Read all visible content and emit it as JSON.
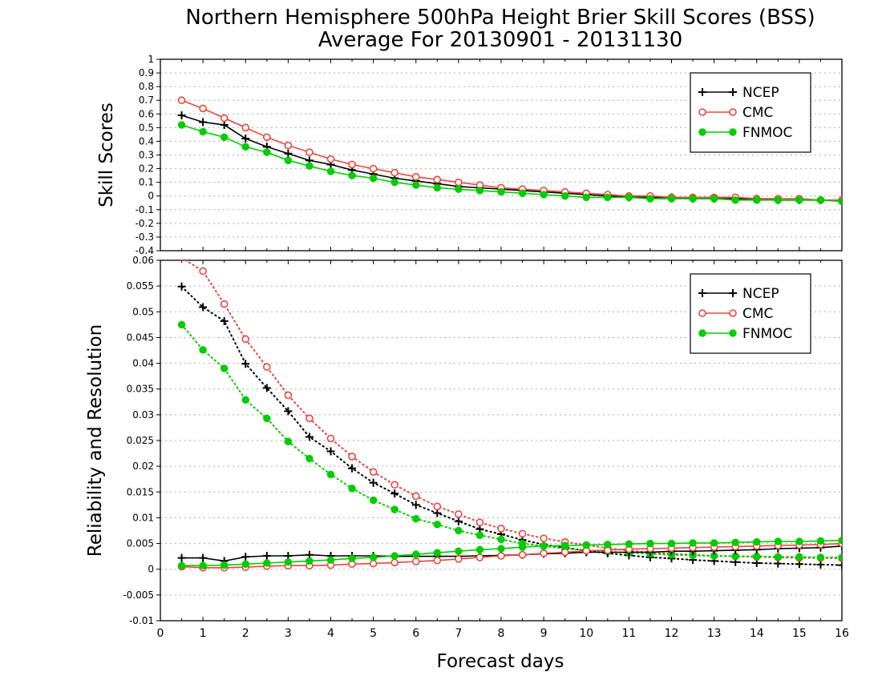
{
  "title_line1": "Northern Hemisphere 500hPa Height Brier Skill Scores (BSS)",
  "title_line2": "Average For 20130901 - 20131130",
  "xlabel": "Forecast days",
  "colors": {
    "NCEP": "#000000",
    "CMC": "#e8463c",
    "FNMOC": "#00cc00",
    "grid": "#aaaaaa"
  },
  "chart_data": [
    {
      "type": "line",
      "ylabel": "Skill Scores",
      "xlim": [
        0,
        16
      ],
      "ylim": [
        -0.4,
        1.0
      ],
      "xticks": [
        "0",
        "1",
        "2",
        "3",
        "4",
        "5",
        "6",
        "7",
        "8",
        "9",
        "10",
        "11",
        "12",
        "13",
        "14",
        "15",
        "16"
      ],
      "yticks": [
        "-0.4",
        "-0.3",
        "-0.2",
        "-0.1",
        "0",
        "0.1",
        "0.2",
        "0.3",
        "0.4",
        "0.5",
        "0.6",
        "0.7",
        "0.8",
        "0.9",
        "1"
      ],
      "grid": true,
      "legend": {
        "position": "top-right",
        "entries": [
          "NCEP",
          "CMC",
          "FNMOC"
        ]
      },
      "x": [
        0.5,
        1,
        1.5,
        2,
        2.5,
        3,
        3.5,
        4,
        4.5,
        5,
        5.5,
        6,
        6.5,
        7,
        7.5,
        8,
        8.5,
        9,
        9.5,
        10,
        10.5,
        11,
        11.5,
        12,
        12.5,
        13,
        13.5,
        14,
        14.5,
        15,
        15.5,
        16
      ],
      "series": [
        {
          "name": "NCEP",
          "marker": "plus",
          "style": "solid",
          "values": [
            0.59,
            0.54,
            0.52,
            0.42,
            0.36,
            0.31,
            0.26,
            0.23,
            0.19,
            0.16,
            0.13,
            0.11,
            0.09,
            0.07,
            0.06,
            0.05,
            0.04,
            0.03,
            0.02,
            0.01,
            0.0,
            -0.01,
            -0.01,
            -0.01,
            -0.02,
            -0.02,
            -0.02,
            -0.02,
            -0.03,
            -0.03,
            -0.03,
            -0.03
          ]
        },
        {
          "name": "CMC",
          "marker": "open-circle",
          "style": "solid",
          "values": [
            0.7,
            0.64,
            0.57,
            0.5,
            0.43,
            0.37,
            0.32,
            0.27,
            0.23,
            0.2,
            0.17,
            0.14,
            0.12,
            0.1,
            0.08,
            0.06,
            0.05,
            0.04,
            0.03,
            0.02,
            0.01,
            0.0,
            0.0,
            -0.01,
            -0.01,
            -0.01,
            -0.01,
            -0.02,
            -0.02,
            -0.02,
            -0.03,
            -0.03
          ]
        },
        {
          "name": "FNMOC",
          "marker": "filled-circle",
          "style": "solid",
          "values": [
            0.52,
            0.47,
            0.43,
            0.36,
            0.32,
            0.26,
            0.22,
            0.18,
            0.15,
            0.13,
            0.1,
            0.08,
            0.06,
            0.05,
            0.04,
            0.03,
            0.02,
            0.01,
            0.0,
            -0.01,
            -0.01,
            -0.01,
            -0.02,
            -0.02,
            -0.02,
            -0.02,
            -0.03,
            -0.03,
            -0.03,
            -0.03,
            -0.03,
            -0.04
          ]
        }
      ]
    },
    {
      "type": "line",
      "ylabel": "Reliability and Resolution",
      "xlim": [
        0,
        16
      ],
      "ylim": [
        -0.01,
        0.06
      ],
      "xticks": [
        "0",
        "1",
        "2",
        "3",
        "4",
        "5",
        "6",
        "7",
        "8",
        "9",
        "10",
        "11",
        "12",
        "13",
        "14",
        "15",
        "16"
      ],
      "yticks": [
        "-0.01",
        "-0.005",
        "0",
        "0.005",
        "0.01",
        "0.015",
        "0.02",
        "0.025",
        "0.03",
        "0.035",
        "0.04",
        "0.045",
        "0.05",
        "0.055",
        "0.06"
      ],
      "grid": true,
      "legend": {
        "position": "top-right",
        "entries": [
          "NCEP",
          "CMC",
          "FNMOC"
        ]
      },
      "x": [
        0.5,
        1,
        1.5,
        2,
        2.5,
        3,
        3.5,
        4,
        4.5,
        5,
        5.5,
        6,
        6.5,
        7,
        7.5,
        8,
        8.5,
        9,
        9.5,
        10,
        10.5,
        11,
        11.5,
        12,
        12.5,
        13,
        13.5,
        14,
        14.5,
        15,
        15.5,
        16
      ],
      "series": [
        {
          "name": "NCEP",
          "marker": "plus",
          "style": "dotted",
          "values": [
            0.0549,
            0.0509,
            0.0482,
            0.0399,
            0.0352,
            0.0307,
            0.0257,
            0.0229,
            0.0196,
            0.0168,
            0.0147,
            0.0125,
            0.0109,
            0.0093,
            0.0078,
            0.0068,
            0.0057,
            0.0048,
            0.0042,
            0.0036,
            0.0031,
            0.0027,
            0.0023,
            0.0021,
            0.0018,
            0.0016,
            0.0014,
            0.0012,
            0.0011,
            0.001,
            0.0009,
            0.0008
          ]
        },
        {
          "name": "CMC",
          "marker": "open-circle",
          "style": "dotted",
          "values": [
            0.0605,
            0.0579,
            0.0515,
            0.0447,
            0.0393,
            0.0338,
            0.0293,
            0.0254,
            0.0219,
            0.0189,
            0.0164,
            0.0142,
            0.0122,
            0.0107,
            0.0091,
            0.0079,
            0.0069,
            0.006,
            0.0053,
            0.0047,
            0.0041,
            0.0036,
            0.0033,
            0.003,
            0.0028,
            0.0026,
            0.0025,
            0.0024,
            0.0023,
            0.0022,
            0.0022,
            0.0021
          ]
        },
        {
          "name": "FNMOC",
          "marker": "filled-circle",
          "style": "dotted",
          "values": [
            0.0475,
            0.0426,
            0.039,
            0.0329,
            0.0293,
            0.0248,
            0.0215,
            0.0184,
            0.0157,
            0.0134,
            0.0116,
            0.0098,
            0.0087,
            0.0075,
            0.0066,
            0.0058,
            0.005,
            0.0045,
            0.004,
            0.0037,
            0.0034,
            0.0032,
            0.003,
            0.0028,
            0.0027,
            0.0026,
            0.0025,
            0.0025,
            0.0024,
            0.0024,
            0.0023,
            0.0023
          ]
        },
        {
          "name": "NCEP",
          "marker": "plus",
          "style": "solid",
          "values": [
            0.0022,
            0.0022,
            0.0016,
            0.0024,
            0.0026,
            0.0026,
            0.0028,
            0.0026,
            0.0026,
            0.0026,
            0.0025,
            0.0025,
            0.0025,
            0.0025,
            0.0026,
            0.0027,
            0.0028,
            0.003,
            0.0031,
            0.0033,
            0.0033,
            0.0033,
            0.0033,
            0.0035,
            0.0035,
            0.0036,
            0.0037,
            0.0038,
            0.004,
            0.0041,
            0.0042,
            0.0045
          ]
        },
        {
          "name": "CMC",
          "marker": "open-circle",
          "style": "solid",
          "values": [
            0.0005,
            0.0003,
            0.0003,
            0.0004,
            0.0006,
            0.0007,
            0.0007,
            0.0008,
            0.001,
            0.0011,
            0.0013,
            0.0015,
            0.0017,
            0.002,
            0.0023,
            0.0026,
            0.0028,
            0.0031,
            0.0033,
            0.0036,
            0.0037,
            0.0039,
            0.004,
            0.0041,
            0.0042,
            0.0043,
            0.0044,
            0.0045,
            0.0046,
            0.0047,
            0.0048,
            0.005
          ]
        },
        {
          "name": "FNMOC",
          "marker": "filled-circle",
          "style": "solid",
          "values": [
            0.0007,
            0.0007,
            0.0008,
            0.001,
            0.0012,
            0.0014,
            0.0016,
            0.0018,
            0.0021,
            0.0023,
            0.0026,
            0.0029,
            0.0032,
            0.0035,
            0.0038,
            0.004,
            0.0043,
            0.0045,
            0.0046,
            0.0047,
            0.0048,
            0.0049,
            0.005,
            0.005,
            0.0051,
            0.0051,
            0.0052,
            0.0053,
            0.0054,
            0.0054,
            0.0055,
            0.0056
          ]
        }
      ]
    }
  ]
}
